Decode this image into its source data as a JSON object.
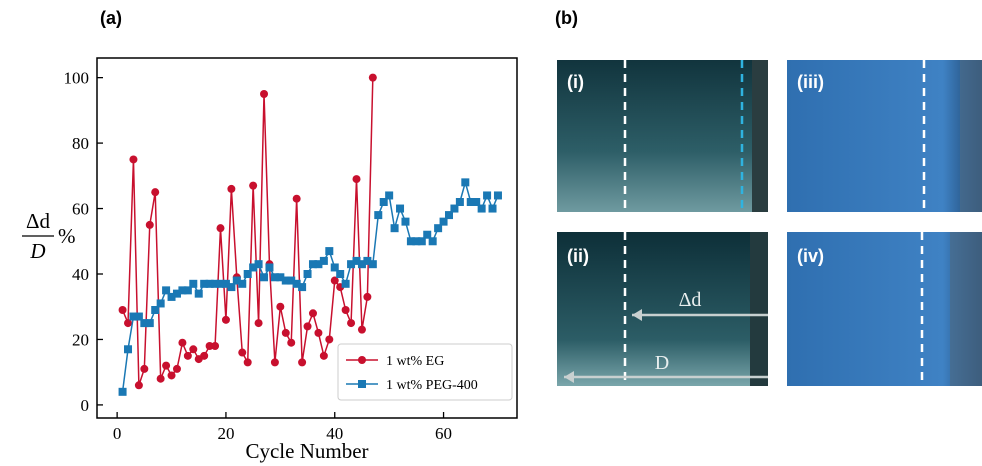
{
  "chart_data": {
    "type": "line",
    "panel": "(a)",
    "ylabel": {
      "numerator": "Δd",
      "denominator": "D",
      "unit": "%"
    },
    "xlabel": "Cycle Number",
    "xlim": [
      -3.7,
      73.5
    ],
    "xticks": [
      0,
      20,
      40,
      60
    ],
    "ylim": [
      -4,
      106
    ],
    "yticks": [
      0,
      20,
      40,
      60,
      80,
      100
    ],
    "legend": "lower right",
    "series": [
      {
        "name": "1 wt% EG",
        "color": "#c8102e",
        "marker": "circle",
        "x": [
          1,
          2,
          3,
          4,
          5,
          6,
          7,
          8,
          9,
          10,
          11,
          12,
          13,
          14,
          15,
          16,
          17,
          18,
          19,
          20,
          21,
          22,
          23,
          24,
          25,
          26,
          27,
          28,
          29,
          30,
          31,
          32,
          33,
          34,
          35,
          36,
          37,
          38,
          39,
          40,
          41,
          42,
          43,
          44,
          45,
          46,
          47
        ],
        "values": [
          29,
          25,
          75,
          6,
          11,
          55,
          65,
          8,
          12,
          9,
          11,
          19,
          15,
          17,
          14,
          15,
          18,
          18,
          54,
          26,
          66,
          39,
          16,
          13,
          67,
          25,
          95,
          43,
          13,
          30,
          22,
          19,
          63,
          13,
          24,
          28,
          22,
          15,
          20,
          38,
          36,
          29,
          25,
          69,
          23,
          33,
          100
        ]
      },
      {
        "name": "1 wt% PEG-400",
        "color": "#1a78b4",
        "marker": "square",
        "x": [
          1,
          2,
          3,
          4,
          5,
          6,
          7,
          8,
          9,
          10,
          11,
          12,
          13,
          14,
          15,
          16,
          17,
          18,
          19,
          20,
          21,
          22,
          23,
          24,
          25,
          26,
          27,
          28,
          29,
          30,
          31,
          32,
          33,
          34,
          35,
          36,
          37,
          38,
          39,
          40,
          41,
          42,
          43,
          44,
          45,
          46,
          47,
          48,
          49,
          50,
          51,
          52,
          53,
          54,
          55,
          56,
          57,
          58,
          59,
          60,
          61,
          62,
          63,
          64,
          65,
          66,
          67,
          68,
          69,
          70
        ],
        "values": [
          4,
          17,
          27,
          27,
          25,
          25,
          29,
          31,
          35,
          33,
          34,
          35,
          35,
          37,
          34,
          37,
          37,
          37,
          37,
          37,
          36,
          38,
          37,
          40,
          42,
          43,
          39,
          42,
          39,
          39,
          38,
          38,
          37,
          36,
          40,
          43,
          43,
          44,
          47,
          42,
          40,
          37,
          43,
          44,
          43,
          44,
          43,
          58,
          62,
          64,
          54,
          60,
          56,
          50,
          50,
          50,
          52,
          50,
          54,
          56,
          58,
          60,
          62,
          68,
          62,
          62,
          60,
          64,
          60,
          64
        ]
      }
    ]
  },
  "images": {
    "panel": "(b)",
    "tiles": [
      "(i)",
      "(iii)",
      "(ii)",
      "(iv)"
    ],
    "annotations": [
      "Δd",
      "D"
    ]
  }
}
